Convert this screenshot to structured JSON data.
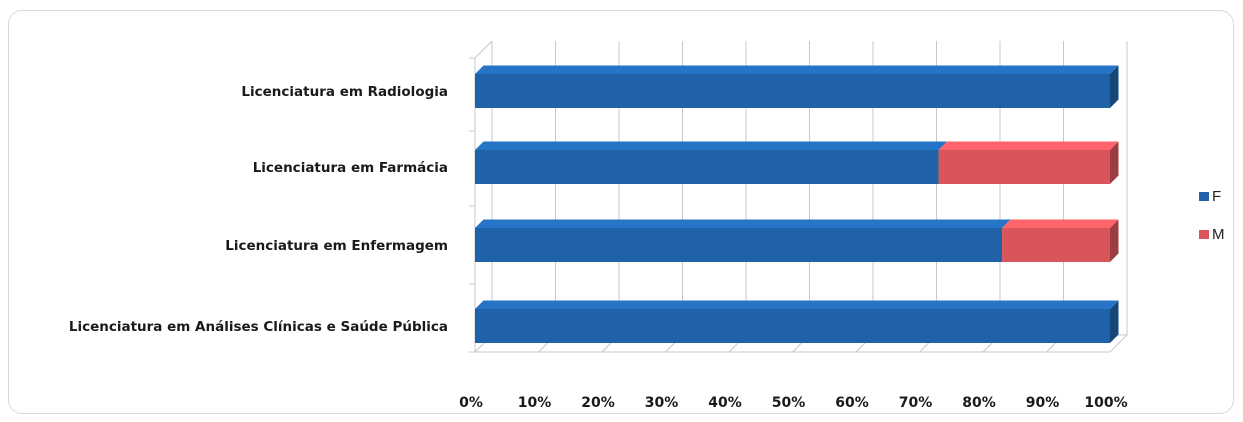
{
  "chart_data": {
    "type": "bar",
    "orientation": "horizontal",
    "stacked": "percent",
    "three_d": true,
    "categories": [
      "Licenciatura em Radiologia",
      "Licenciatura em Farmácia",
      "Licenciatura em Enfermagem",
      "Licenciatura em Análises Clínicas e Saúde Pública"
    ],
    "series": [
      {
        "name": "F",
        "values": [
          100,
          73,
          83,
          100
        ]
      },
      {
        "name": "M",
        "values": [
          0,
          27,
          17,
          0
        ]
      }
    ],
    "x_ticks": [
      "0%",
      "10%",
      "20%",
      "30%",
      "40%",
      "50%",
      "60%",
      "70%",
      "80%",
      "90%",
      "100%"
    ],
    "xlim": [
      0,
      100
    ],
    "grid": true,
    "legend_position": "right",
    "colors": {
      "F": "#1f62a8",
      "M": "#d9555c"
    }
  }
}
